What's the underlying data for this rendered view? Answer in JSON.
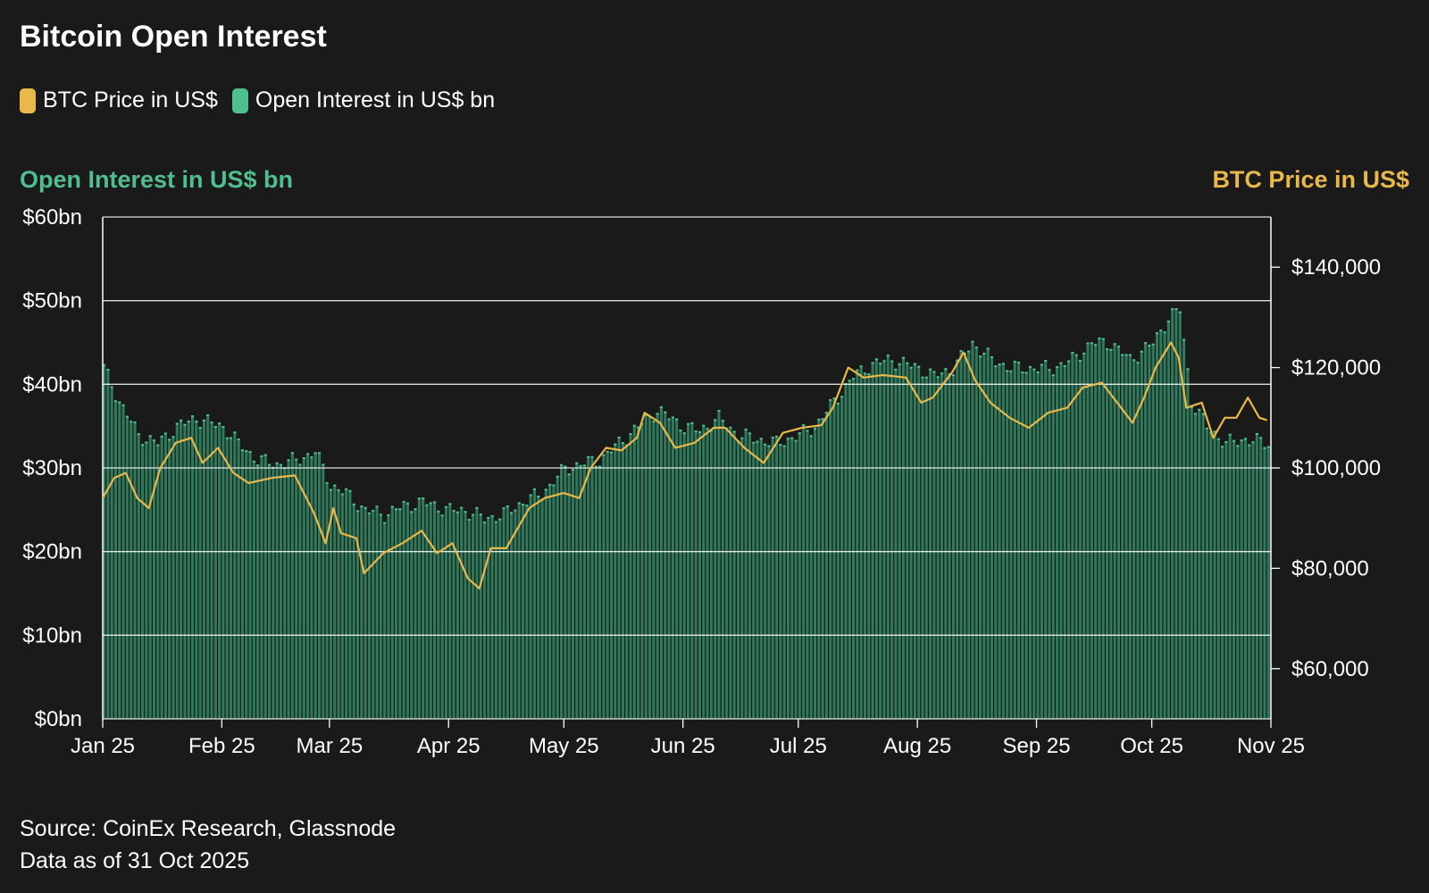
{
  "title": "Bitcoin Open Interest",
  "legend": [
    {
      "label": "BTC Price in US$",
      "color": "#e8b84a"
    },
    {
      "label": "Open Interest in US$ bn",
      "color": "#4fbf8f"
    }
  ],
  "axes": {
    "left_title": "Open Interest in US$ bn",
    "right_title": "BTC Price in US$"
  },
  "source": {
    "line1": "Source: CoinEx Research, Glassnode",
    "line2": "Data as of 31 Oct 2025"
  },
  "colors": {
    "bars": "#2f7a5b",
    "bar_highlight": "#4fbf8f",
    "price_line": "#e8b84a",
    "grid": "#ffffff",
    "background": "#1a1a1a"
  },
  "chart_data": {
    "type": "bar+line",
    "title": "Bitcoin Open Interest",
    "x_range": [
      "2025-01-01",
      "2025-11-01"
    ],
    "x_ticks": [
      {
        "date": "2025-01-01",
        "label": "Jan 25"
      },
      {
        "date": "2025-02-01",
        "label": "Feb 25"
      },
      {
        "date": "2025-03-01",
        "label": "Mar 25"
      },
      {
        "date": "2025-04-01",
        "label": "Apr 25"
      },
      {
        "date": "2025-05-01",
        "label": "May 25"
      },
      {
        "date": "2025-06-01",
        "label": "Jun 25"
      },
      {
        "date": "2025-07-01",
        "label": "Jul 25"
      },
      {
        "date": "2025-08-01",
        "label": "Aug 25"
      },
      {
        "date": "2025-09-01",
        "label": "Sep 25"
      },
      {
        "date": "2025-10-01",
        "label": "Oct 25"
      },
      {
        "date": "2025-11-01",
        "label": "Nov 25"
      }
    ],
    "left_axis": {
      "label": "Open Interest in US$ bn",
      "ylim": [
        0,
        60
      ],
      "ticks": [
        {
          "value": 0,
          "label": "$0bn"
        },
        {
          "value": 10,
          "label": "$10bn"
        },
        {
          "value": 20,
          "label": "$20bn"
        },
        {
          "value": 30,
          "label": "$30bn"
        },
        {
          "value": 40,
          "label": "$40bn"
        },
        {
          "value": 50,
          "label": "$50bn"
        },
        {
          "value": 60,
          "label": "$60bn"
        }
      ]
    },
    "right_axis": {
      "label": "BTC Price in US$",
      "ylim": [
        50000,
        150000
      ],
      "ticks": [
        {
          "value": 60000,
          "label": "$60,000"
        },
        {
          "value": 80000,
          "label": "$80,000"
        },
        {
          "value": 100000,
          "label": "$100,000"
        },
        {
          "value": 120000,
          "label": "$120,000"
        },
        {
          "value": 140000,
          "label": "$140,000"
        }
      ]
    },
    "grid": true,
    "series": [
      {
        "name": "Open Interest in US$ bn",
        "type": "bar",
        "axis": "left",
        "points": [
          [
            "2025-01-01",
            42
          ],
          [
            "2025-01-05",
            38
          ],
          [
            "2025-01-10",
            34
          ],
          [
            "2025-01-15",
            33
          ],
          [
            "2025-01-20",
            35
          ],
          [
            "2025-01-25",
            36
          ],
          [
            "2025-02-01",
            35
          ],
          [
            "2025-02-05",
            33
          ],
          [
            "2025-02-10",
            31
          ],
          [
            "2025-02-15",
            30.5
          ],
          [
            "2025-02-20",
            31
          ],
          [
            "2025-02-25",
            32
          ],
          [
            "2025-03-01",
            28
          ],
          [
            "2025-03-05",
            27
          ],
          [
            "2025-03-10",
            25
          ],
          [
            "2025-03-15",
            24.5
          ],
          [
            "2025-03-20",
            25.5
          ],
          [
            "2025-03-25",
            26
          ],
          [
            "2025-04-01",
            25
          ],
          [
            "2025-04-05",
            25
          ],
          [
            "2025-04-10",
            24
          ],
          [
            "2025-04-15",
            24.5
          ],
          [
            "2025-04-20",
            26
          ],
          [
            "2025-04-25",
            27
          ],
          [
            "2025-05-01",
            30
          ],
          [
            "2025-05-05",
            30.5
          ],
          [
            "2025-05-10",
            31
          ],
          [
            "2025-05-15",
            33
          ],
          [
            "2025-05-20",
            35
          ],
          [
            "2025-05-25",
            37
          ],
          [
            "2025-06-01",
            35
          ],
          [
            "2025-06-05",
            34.5
          ],
          [
            "2025-06-10",
            36
          ],
          [
            "2025-06-15",
            34
          ],
          [
            "2025-06-20",
            33.5
          ],
          [
            "2025-06-25",
            33
          ],
          [
            "2025-07-01",
            34
          ],
          [
            "2025-07-05",
            35
          ],
          [
            "2025-07-10",
            38
          ],
          [
            "2025-07-15",
            41
          ],
          [
            "2025-07-20",
            42.5
          ],
          [
            "2025-07-25",
            43
          ],
          [
            "2025-08-01",
            42
          ],
          [
            "2025-08-05",
            41
          ],
          [
            "2025-08-10",
            42
          ],
          [
            "2025-08-15",
            45
          ],
          [
            "2025-08-20",
            43
          ],
          [
            "2025-08-25",
            42
          ],
          [
            "2025-09-01",
            42
          ],
          [
            "2025-09-05",
            42
          ],
          [
            "2025-09-10",
            43
          ],
          [
            "2025-09-15",
            45
          ],
          [
            "2025-09-20",
            45
          ],
          [
            "2025-09-25",
            43
          ],
          [
            "2025-10-01",
            45
          ],
          [
            "2025-10-05",
            48
          ],
          [
            "2025-10-08",
            49
          ],
          [
            "2025-10-11",
            38
          ],
          [
            "2025-10-15",
            35
          ],
          [
            "2025-10-20",
            33
          ],
          [
            "2025-10-25",
            33.5
          ],
          [
            "2025-10-31",
            33
          ]
        ]
      },
      {
        "name": "BTC Price in US$",
        "type": "line",
        "axis": "right",
        "points": [
          [
            "2025-01-01",
            94000
          ],
          [
            "2025-01-04",
            98000
          ],
          [
            "2025-01-07",
            99000
          ],
          [
            "2025-01-10",
            94000
          ],
          [
            "2025-01-13",
            92000
          ],
          [
            "2025-01-16",
            100000
          ],
          [
            "2025-01-20",
            105000
          ],
          [
            "2025-01-24",
            106000
          ],
          [
            "2025-01-27",
            101000
          ],
          [
            "2025-01-31",
            104000
          ],
          [
            "2025-02-04",
            99000
          ],
          [
            "2025-02-08",
            97000
          ],
          [
            "2025-02-14",
            98000
          ],
          [
            "2025-02-20",
            98500
          ],
          [
            "2025-02-25",
            91000
          ],
          [
            "2025-02-28",
            85000
          ],
          [
            "2025-03-02",
            92000
          ],
          [
            "2025-03-04",
            87000
          ],
          [
            "2025-03-08",
            86000
          ],
          [
            "2025-03-10",
            79000
          ],
          [
            "2025-03-15",
            83000
          ],
          [
            "2025-03-20",
            85000
          ],
          [
            "2025-03-25",
            87500
          ],
          [
            "2025-03-29",
            83000
          ],
          [
            "2025-04-02",
            85000
          ],
          [
            "2025-04-06",
            78000
          ],
          [
            "2025-04-09",
            76000
          ],
          [
            "2025-04-12",
            84000
          ],
          [
            "2025-04-16",
            84000
          ],
          [
            "2025-04-22",
            92000
          ],
          [
            "2025-04-26",
            94000
          ],
          [
            "2025-05-01",
            95000
          ],
          [
            "2025-05-05",
            94000
          ],
          [
            "2025-05-08",
            100000
          ],
          [
            "2025-05-12",
            104000
          ],
          [
            "2025-05-16",
            103500
          ],
          [
            "2025-05-20",
            106000
          ],
          [
            "2025-05-22",
            111000
          ],
          [
            "2025-05-26",
            109000
          ],
          [
            "2025-05-30",
            104000
          ],
          [
            "2025-06-04",
            105000
          ],
          [
            "2025-06-09",
            108000
          ],
          [
            "2025-06-12",
            108000
          ],
          [
            "2025-06-17",
            104000
          ],
          [
            "2025-06-22",
            101000
          ],
          [
            "2025-06-27",
            107000
          ],
          [
            "2025-07-02",
            108000
          ],
          [
            "2025-07-07",
            108500
          ],
          [
            "2025-07-10",
            112000
          ],
          [
            "2025-07-14",
            120000
          ],
          [
            "2025-07-18",
            118000
          ],
          [
            "2025-07-23",
            118500
          ],
          [
            "2025-07-29",
            118000
          ],
          [
            "2025-08-02",
            113000
          ],
          [
            "2025-08-05",
            114000
          ],
          [
            "2025-08-10",
            119000
          ],
          [
            "2025-08-13",
            123000
          ],
          [
            "2025-08-16",
            117500
          ],
          [
            "2025-08-20",
            113000
          ],
          [
            "2025-08-25",
            110000
          ],
          [
            "2025-08-30",
            108000
          ],
          [
            "2025-09-04",
            111000
          ],
          [
            "2025-09-09",
            112000
          ],
          [
            "2025-09-13",
            116000
          ],
          [
            "2025-09-18",
            117000
          ],
          [
            "2025-09-22",
            113000
          ],
          [
            "2025-09-26",
            109000
          ],
          [
            "2025-09-29",
            114000
          ],
          [
            "2025-10-02",
            120000
          ],
          [
            "2025-10-06",
            125000
          ],
          [
            "2025-10-08",
            122000
          ],
          [
            "2025-10-10",
            112000
          ],
          [
            "2025-10-14",
            113000
          ],
          [
            "2025-10-17",
            106000
          ],
          [
            "2025-10-20",
            110000
          ],
          [
            "2025-10-23",
            110000
          ],
          [
            "2025-10-26",
            114000
          ],
          [
            "2025-10-29",
            110000
          ],
          [
            "2025-10-31",
            109500
          ]
        ]
      }
    ]
  }
}
